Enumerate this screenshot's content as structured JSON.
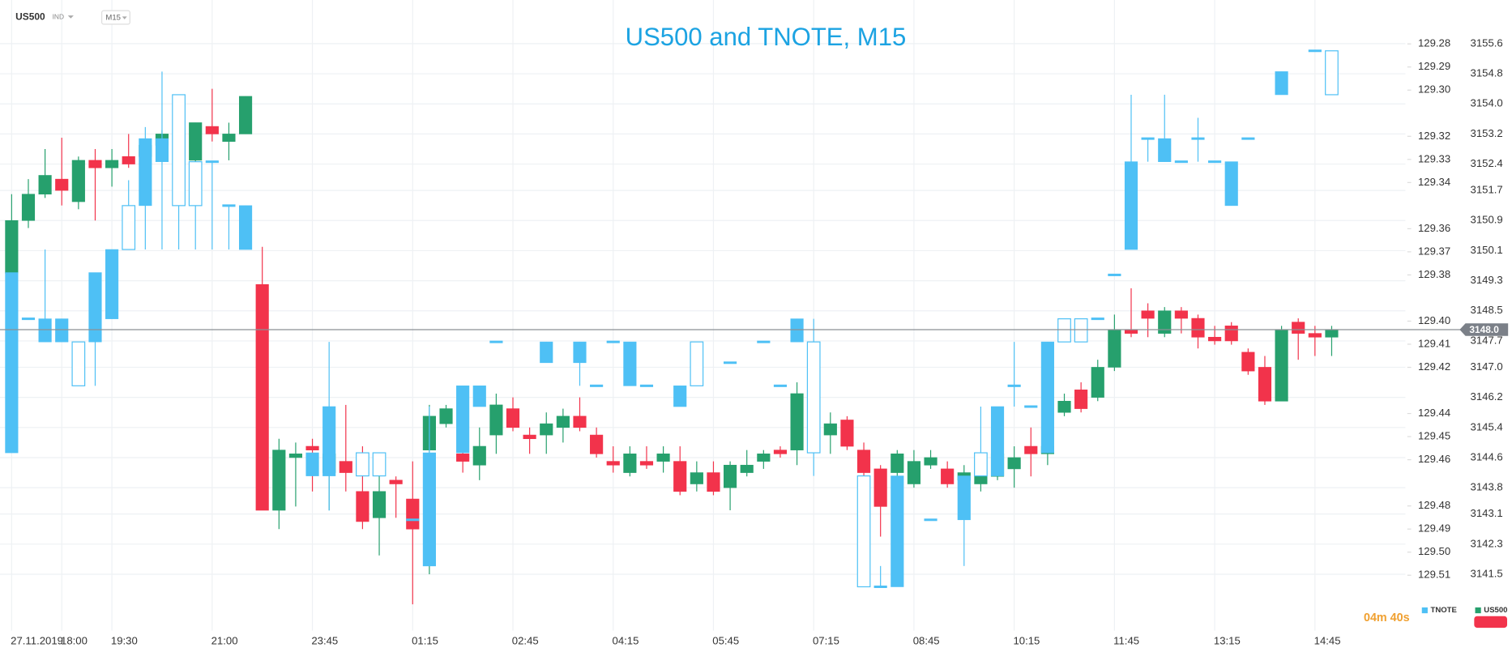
{
  "toolbar": {
    "symbol": "US500",
    "market": "IND",
    "timeframe": "M15"
  },
  "chart_data": {
    "type": "candlestick",
    "title": "US500 and TNOTE, M15",
    "categories": [
      "27.11.2019",
      null,
      null,
      "18:00",
      null,
      null,
      "19:30",
      null,
      null,
      null,
      null,
      null,
      "21:00",
      null,
      null,
      null,
      null,
      null,
      "23:45",
      null,
      null,
      null,
      null,
      null,
      "01:15",
      null,
      null,
      null,
      null,
      null,
      "02:45",
      null,
      null,
      null,
      null,
      null,
      "04:15",
      null,
      null,
      null,
      null,
      null,
      "05:45",
      null,
      null,
      null,
      null,
      null,
      "07:15",
      null,
      null,
      null,
      null,
      null,
      "08:45",
      null,
      null,
      null,
      null,
      null,
      "10:15",
      null,
      null,
      null,
      null,
      null,
      "11:45",
      null,
      null,
      null,
      null,
      null,
      "13:15",
      null,
      null,
      null,
      null,
      null,
      "14:45",
      null
    ],
    "ylim": [
      3140.0,
      3156.76
    ],
    "yticks": [
      3141.5,
      3142.3,
      3143.1,
      3143.8,
      3144.6,
      3145.4,
      3146.2,
      {
        "value": 3147.0,
        "label": "3147.0"
      },
      3147.7,
      3148.5,
      3149.3,
      3150.1,
      3150.9,
      3151.7,
      3152.4,
      3153.2,
      {
        "value": 3154.0,
        "label": "3154.0"
      },
      3154.8,
      3155.6
    ],
    "y2lim": [
      129.261,
      129.534
    ],
    "y2_inverted": true,
    "y2ticks": [
      129.28,
      129.29,
      {
        "value": 129.3,
        "label": "129.30"
      },
      129.32,
      129.33,
      129.34,
      129.36,
      129.37,
      129.38,
      {
        "value": 129.4,
        "label": "129.40"
      },
      129.41,
      129.42,
      129.44,
      129.45,
      129.46,
      129.48,
      129.49,
      {
        "value": 129.5,
        "label": "129.50"
      },
      129.51
    ],
    "grid": true,
    "price_marker": {
      "value": 3148.0,
      "label": "3148.0"
    },
    "timer": "04m 40s",
    "series": [
      {
        "name": "US500",
        "axis": "y",
        "up_color": "#26a06d",
        "down_color": "#f2334b",
        "open": [
          3149.5,
          3150.9,
          3151.6,
          3152.0,
          3151.4,
          3152.5,
          3152.3,
          3152.6,
          3152.6,
          3152.9,
          3153.2,
          3152.5,
          3153.4,
          3153.0,
          3153.2,
          3149.2,
          3143.2,
          3144.6,
          3144.9,
          3144.2,
          3144.5,
          3143.7,
          3143.0,
          3144.0,
          3143.5,
          3144.8,
          3145.5,
          3144.7,
          3144.4,
          3145.2,
          3145.9,
          3145.2,
          3145.2,
          3145.4,
          3145.7,
          3145.2,
          3144.5,
          3144.2,
          3144.5,
          3144.5,
          3144.5,
          3143.9,
          3144.2,
          3143.8,
          3144.2,
          3144.5,
          3144.8,
          3144.8,
          3145.9,
          3145.2,
          3145.6,
          3144.8,
          3144.3,
          3144.2,
          3143.9,
          3144.4,
          3144.3,
          3144.0,
          3143.9,
          3144.1,
          3144.3,
          3144.9,
          3144.7,
          3145.8,
          3146.4,
          3146.2,
          3147.0,
          3148.0,
          3148.5,
          3147.9,
          3148.5,
          3148.3,
          3147.8,
          3148.1,
          3147.4,
          3147.0,
          3146.1,
          3148.2,
          3147.9,
          3147.8
        ],
        "high": [
          3151.6,
          3152.0,
          3152.8,
          3153.1,
          3152.6,
          3152.8,
          3152.8,
          3153.2,
          3153.0,
          3153.3,
          3153.3,
          3153.5,
          3154.4,
          3153.5,
          3154.2,
          3150.2,
          3145.1,
          3145.0,
          3145.1,
          3145.7,
          3146.0,
          3144.9,
          3144.2,
          3144.1,
          3144.5,
          3146.0,
          3146.0,
          3145.2,
          3145.4,
          3146.3,
          3146.2,
          3145.4,
          3145.8,
          3145.9,
          3146.2,
          3145.4,
          3144.9,
          3144.9,
          3144.9,
          3144.9,
          3144.9,
          3144.5,
          3144.5,
          3144.5,
          3144.8,
          3144.8,
          3144.9,
          3146.6,
          3146.5,
          3145.8,
          3145.7,
          3145.0,
          3144.4,
          3144.8,
          3144.8,
          3144.8,
          3144.5,
          3144.4,
          3144.5,
          3144.9,
          3144.9,
          3145.4,
          3145.7,
          3146.3,
          3146.6,
          3147.2,
          3148.4,
          3149.1,
          3148.7,
          3148.6,
          3148.6,
          3148.4,
          3148.1,
          3148.2,
          3147.5,
          3147.3,
          3148.1,
          3148.3,
          3148.1,
          3148.1
        ],
        "low": [
          3149.3,
          3150.7,
          3151.5,
          3151.3,
          3151.2,
          3150.9,
          3151.8,
          3152.3,
          3152.4,
          3152.8,
          3152.5,
          3152.2,
          3153.0,
          3152.5,
          3153.2,
          3143.2,
          3142.7,
          3143.3,
          3143.7,
          3143.2,
          3143.7,
          3142.7,
          3142.0,
          3143.0,
          3140.7,
          3141.5,
          3145.4,
          3144.2,
          3144.0,
          3144.7,
          3145.3,
          3144.7,
          3144.7,
          3145.0,
          3145.3,
          3144.6,
          3144.2,
          3144.1,
          3144.3,
          3144.2,
          3143.6,
          3143.7,
          3143.6,
          3143.2,
          3144.1,
          3144.3,
          3144.6,
          3144.4,
          3145.0,
          3144.7,
          3144.8,
          3144.1,
          3142.5,
          3143.9,
          3143.8,
          3144.3,
          3143.8,
          3143.5,
          3143.7,
          3144.0,
          3143.8,
          3144.1,
          3144.4,
          3145.7,
          3145.8,
          3146.1,
          3146.9,
          3147.8,
          3147.8,
          3147.8,
          3147.9,
          3147.5,
          3147.6,
          3147.6,
          3146.8,
          3146.0,
          3146.1,
          3147.2,
          3147.3,
          3147.3
        ],
        "close": [
          3150.9,
          3151.6,
          3152.1,
          3151.7,
          3152.5,
          3152.3,
          3152.5,
          3152.4,
          3152.9,
          3153.2,
          3152.6,
          3153.5,
          3153.2,
          3153.2,
          3154.2,
          3143.2,
          3144.8,
          3144.7,
          3144.8,
          3144.7,
          3144.2,
          3142.9,
          3143.7,
          3143.9,
          3142.7,
          3145.7,
          3145.9,
          3144.5,
          3144.9,
          3146.0,
          3145.4,
          3145.1,
          3145.5,
          3145.7,
          3145.4,
          3144.7,
          3144.4,
          3144.7,
          3144.4,
          3144.7,
          3143.7,
          3144.2,
          3143.7,
          3144.4,
          3144.4,
          3144.7,
          3144.7,
          3146.3,
          3145.4,
          3145.5,
          3144.9,
          3144.2,
          3143.3,
          3144.7,
          3144.5,
          3144.6,
          3143.9,
          3144.2,
          3144.2,
          3144.7,
          3144.6,
          3144.7,
          3144.9,
          3146.1,
          3145.9,
          3147.0,
          3148.0,
          3147.9,
          3148.3,
          3148.5,
          3148.3,
          3147.8,
          3147.7,
          3147.7,
          3146.9,
          3146.1,
          3148.0,
          3147.9,
          3147.8,
          3148.0
        ]
      },
      {
        "name": "TNOTE",
        "axis": "y2",
        "color": "#4ec0f5",
        "open": [
          129.457,
          129.399,
          129.409,
          129.409,
          129.409,
          129.409,
          129.399,
          129.35,
          129.35,
          129.331,
          129.302,
          129.331,
          129.331,
          129.35,
          129.369,
          null,
          null,
          null,
          129.467,
          129.467,
          null,
          129.457,
          129.457,
          null,
          129.486,
          129.506,
          null,
          129.457,
          129.437,
          129.409,
          null,
          null,
          129.418,
          null,
          129.418,
          129.428,
          129.409,
          129.428,
          129.428,
          null,
          129.437,
          129.409,
          null,
          129.418,
          null,
          129.409,
          129.428,
          129.409,
          129.409,
          null,
          null,
          129.467,
          129.515,
          129.515,
          null,
          129.486,
          null,
          129.486,
          129.457,
          129.467,
          129.428,
          129.437,
          129.457,
          129.399,
          129.399,
          129.399,
          129.38,
          129.369,
          129.321,
          129.331,
          129.331,
          129.321,
          129.331,
          129.35,
          129.321,
          null,
          129.302,
          null,
          129.283,
          129.283
        ],
        "high": [
          129.457,
          129.399,
          129.409,
          129.409,
          129.428,
          129.428,
          129.399,
          129.369,
          129.369,
          129.369,
          129.369,
          129.369,
          129.369,
          129.369,
          129.369,
          null,
          null,
          null,
          129.467,
          129.482,
          null,
          129.467,
          129.467,
          null,
          129.486,
          129.506,
          null,
          129.457,
          129.437,
          129.409,
          null,
          null,
          129.418,
          null,
          129.428,
          129.428,
          129.409,
          129.428,
          129.428,
          null,
          129.437,
          129.428,
          null,
          129.418,
          null,
          129.409,
          129.428,
          129.409,
          129.467,
          null,
          null,
          129.515,
          129.515,
          129.515,
          null,
          129.486,
          null,
          129.506,
          129.467,
          129.467,
          129.437,
          129.437,
          129.457,
          129.409,
          129.409,
          129.399,
          129.38,
          129.369,
          129.331,
          129.331,
          129.331,
          129.331,
          129.331,
          129.35,
          129.321,
          null,
          129.302,
          null,
          129.283,
          129.302
        ],
        "low": [
          129.379,
          129.399,
          129.369,
          129.399,
          129.409,
          129.379,
          129.369,
          129.339,
          129.316,
          129.292,
          129.302,
          129.331,
          129.331,
          129.35,
          129.35,
          null,
          null,
          null,
          129.457,
          129.409,
          null,
          129.457,
          129.457,
          null,
          129.486,
          129.437,
          null,
          129.428,
          129.428,
          129.409,
          null,
          null,
          129.409,
          null,
          129.409,
          129.428,
          129.409,
          129.409,
          129.428,
          null,
          129.428,
          129.409,
          null,
          129.418,
          null,
          129.409,
          129.428,
          129.399,
          129.399,
          null,
          null,
          129.467,
          129.506,
          129.467,
          null,
          129.486,
          null,
          129.467,
          129.437,
          129.437,
          129.409,
          129.437,
          129.409,
          129.399,
          129.399,
          129.399,
          129.38,
          129.302,
          129.321,
          129.302,
          129.331,
          129.312,
          129.331,
          129.331,
          129.321,
          null,
          129.292,
          null,
          129.283,
          129.283
        ],
        "close": [
          129.379,
          129.399,
          129.399,
          129.399,
          129.428,
          129.379,
          129.369,
          129.369,
          129.321,
          129.321,
          129.35,
          129.35,
          129.331,
          129.35,
          129.35,
          null,
          null,
          null,
          129.457,
          129.437,
          null,
          129.467,
          129.467,
          null,
          129.486,
          129.457,
          null,
          129.428,
          129.428,
          129.409,
          null,
          null,
          129.409,
          null,
          129.409,
          129.428,
          129.409,
          129.409,
          129.428,
          null,
          129.428,
          129.428,
          null,
          129.418,
          null,
          129.409,
          129.428,
          129.399,
          129.457,
          null,
          null,
          129.515,
          129.515,
          129.467,
          null,
          129.486,
          null,
          129.467,
          129.467,
          129.437,
          129.428,
          129.437,
          129.409,
          129.409,
          129.409,
          129.399,
          129.38,
          129.331,
          129.321,
          129.321,
          129.331,
          129.321,
          129.331,
          129.331,
          129.321,
          null,
          129.292,
          null,
          129.283,
          129.302
        ]
      }
    ]
  }
}
